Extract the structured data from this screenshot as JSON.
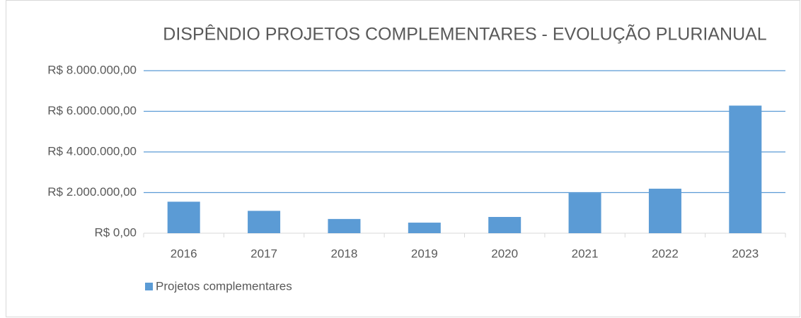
{
  "chart_data": {
    "type": "bar",
    "title": "DISPÊNDIO PROJETOS COMPLEMENTARES - EVOLUÇÃO PLURIANUAL",
    "categories": [
      "2016",
      "2017",
      "2018",
      "2019",
      "2020",
      "2021",
      "2022",
      "2023"
    ],
    "series": [
      {
        "name": "Projetos complementares",
        "color": "#5b9bd5",
        "values": [
          1550000,
          1100000,
          700000,
          520000,
          800000,
          1980000,
          2190000,
          6280000
        ]
      }
    ],
    "ylim": [
      0,
      8000000
    ],
    "yticks": [
      {
        "value": 0,
        "label": "R$ 0,00"
      },
      {
        "value": 2000000,
        "label": "R$ 2.000.000,00"
      },
      {
        "value": 4000000,
        "label": "R$ 4.000.000,00"
      },
      {
        "value": 6000000,
        "label": "R$ 6.000.000,00"
      },
      {
        "value": 8000000,
        "label": "R$ 8.000.000,00"
      }
    ],
    "grid": true,
    "legend": "bottom-left"
  }
}
